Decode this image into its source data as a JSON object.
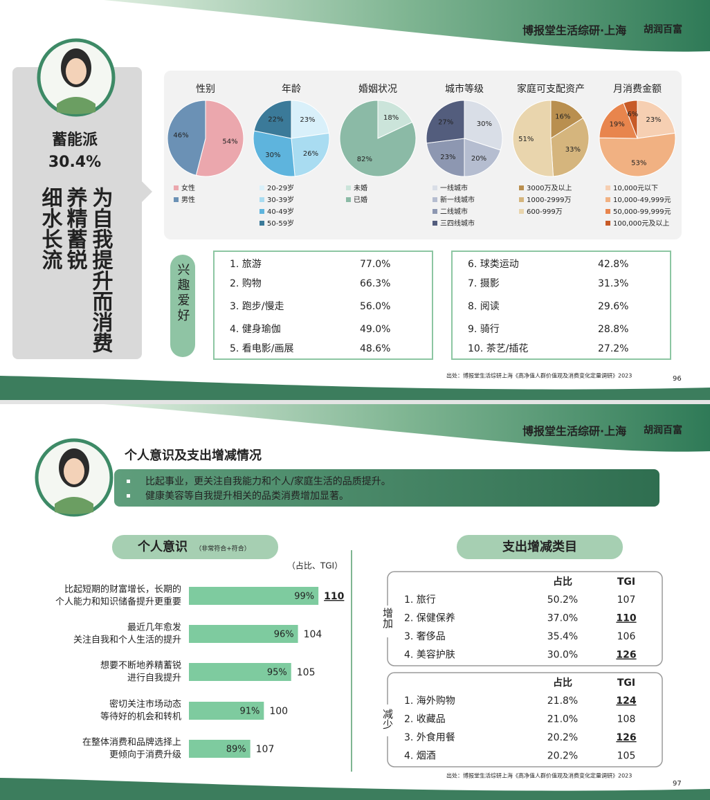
{
  "chart_data": [
    {
      "type": "pie",
      "title": "性别",
      "categories": [
        "女性",
        "男性"
      ],
      "values": [
        54,
        46
      ],
      "value_labels": [
        "54%",
        "46%"
      ],
      "colors": [
        "#eba7ad",
        "#6b91b5"
      ]
    },
    {
      "type": "pie",
      "title": "年龄",
      "categories": [
        "20-29岁",
        "30-39岁",
        "40-49岁",
        "50-59岁"
      ],
      "values": [
        23,
        26,
        30,
        22
      ],
      "value_labels": [
        "23%",
        "26%",
        "30%",
        "22%"
      ],
      "colors": [
        "#d9f0fa",
        "#a9dcf1",
        "#5eb4dd",
        "#3b7a99"
      ]
    },
    {
      "type": "pie",
      "title": "婚姻状况",
      "categories": [
        "未婚",
        "已婚"
      ],
      "values": [
        18,
        82
      ],
      "value_labels": [
        "18%",
        "82%"
      ],
      "colors": [
        "#cbe4da",
        "#8bbaa6"
      ]
    },
    {
      "type": "pie",
      "title": "城市等级",
      "categories": [
        "一线城市",
        "新一线城市",
        "二线城市",
        "三四线城市"
      ],
      "values": [
        30,
        20,
        23,
        27
      ],
      "value_labels": [
        "30%",
        "20%",
        "23%",
        "27%"
      ],
      "colors": [
        "#d9dee7",
        "#b5bdd0",
        "#8d97b1",
        "#535d7d"
      ]
    },
    {
      "type": "pie",
      "title": "家庭可支配资产",
      "categories": [
        "3000万及以上",
        "1000-2999万",
        "600-999万"
      ],
      "values": [
        16,
        33,
        51
      ],
      "value_labels": [
        "16%",
        "33%",
        "51%"
      ],
      "colors": [
        "#b98f4f",
        "#d5b57d",
        "#e9d5ad"
      ]
    },
    {
      "type": "pie",
      "title": "月消费金额",
      "categories": [
        "10,000元以下",
        "10,000-49,999元",
        "50,000-99,999元",
        "100,000元及以上"
      ],
      "values": [
        23,
        53,
        19,
        6
      ],
      "value_labels": [
        "23%",
        "53%",
        "19%",
        "6%"
      ],
      "colors": [
        "#f6cfb2",
        "#f1b182",
        "#e8854d",
        "#c75a27"
      ]
    },
    {
      "type": "bar",
      "title": "个人意识",
      "subtitle": "（非常符合+符合）",
      "note": "（占比、TGI）",
      "categories": [
        [
          "比起短期的财富增长，长期的",
          "个人能力和知识储备提升更重要"
        ],
        [
          "最近几年愈发",
          "关注自我和个人生活的提升"
        ],
        [
          "想要不断地养精蓄锐",
          "进行自我提升"
        ],
        [
          "密切关注市场动态",
          "等待好的机会和转机"
        ],
        [
          "在整体消费和品牌选择上",
          "更倾向于消费升级"
        ]
      ],
      "values": [
        99,
        96,
        95,
        91,
        89
      ],
      "value_labels": [
        "99%",
        "96%",
        "95%",
        "91%",
        "89%"
      ],
      "tgi": [
        110,
        104,
        105,
        100,
        107
      ],
      "tgi_highlight": [
        true,
        false,
        false,
        false,
        false
      ],
      "xlim": [
        80,
        100
      ],
      "color": "#7ecb9f"
    }
  ],
  "slide1": {
    "brand": "博报堂生活综研·上海",
    "logo": "胡润百富",
    "persona": {
      "name": "蓄能派",
      "share": "30.4%",
      "slogan": [
        "为自我提升而消费",
        "养精蓄锐",
        "细水长流"
      ]
    },
    "interests": {
      "label": "兴趣爱好",
      "columns": [
        [
          [
            "1. 旅游",
            "77.0%"
          ],
          [
            "2. 购物",
            "66.3%"
          ],
          [
            "3. 跑步/慢走",
            "56.0%"
          ],
          [
            "4. 健身瑜伽",
            "49.0%"
          ],
          [
            "5. 看电影/画展",
            "48.6%"
          ]
        ],
        [
          [
            "6. 球类运动",
            "42.8%"
          ],
          [
            "7. 摄影",
            "31.3%"
          ],
          [
            "8. 阅读",
            "29.6%"
          ],
          [
            "9. 骑行",
            "28.8%"
          ],
          [
            "10. 茶艺/插花",
            "27.2%"
          ]
        ]
      ]
    },
    "source": "出处：博报堂生活综研上海《高净值人群价值观及消费变化定量调研》2023",
    "page": "96"
  },
  "slide2": {
    "brand": "博报堂生活综研·上海",
    "logo": "胡润百富",
    "title": "个人意识及支出增减情况",
    "bullets": [
      "比起事业，更关注自我能力和个人/家庭生活的品质提升。",
      "健康美容等自我提升相关的品类消费增加显著。"
    ],
    "spending": {
      "title": "支出增减类目",
      "groups": [
        {
          "label": "增加",
          "header": [
            "占比",
            "TGI"
          ],
          "rows": [
            [
              "1. 旅行",
              "50.2%",
              "107"
            ],
            [
              "2. 保健保养",
              "37.0%",
              "110"
            ],
            [
              "3. 奢侈品",
              "35.4%",
              "106"
            ],
            [
              "4. 美容护肤",
              "30.0%",
              "126"
            ]
          ],
          "highlight": [
            false,
            true,
            false,
            true
          ]
        },
        {
          "label": "减少",
          "header": [
            "占比",
            "TGI"
          ],
          "rows": [
            [
              "1. 海外购物",
              "21.8%",
              "124"
            ],
            [
              "2. 收藏品",
              "21.0%",
              "108"
            ],
            [
              "3. 外食用餐",
              "20.2%",
              "126"
            ],
            [
              "4. 烟酒",
              "20.2%",
              "105"
            ]
          ],
          "highlight": [
            true,
            false,
            true,
            false
          ]
        }
      ]
    },
    "source": "出处：博报堂生活综研上海《高净值人群价值观及消费变化定量调研》2023",
    "page": "97"
  }
}
